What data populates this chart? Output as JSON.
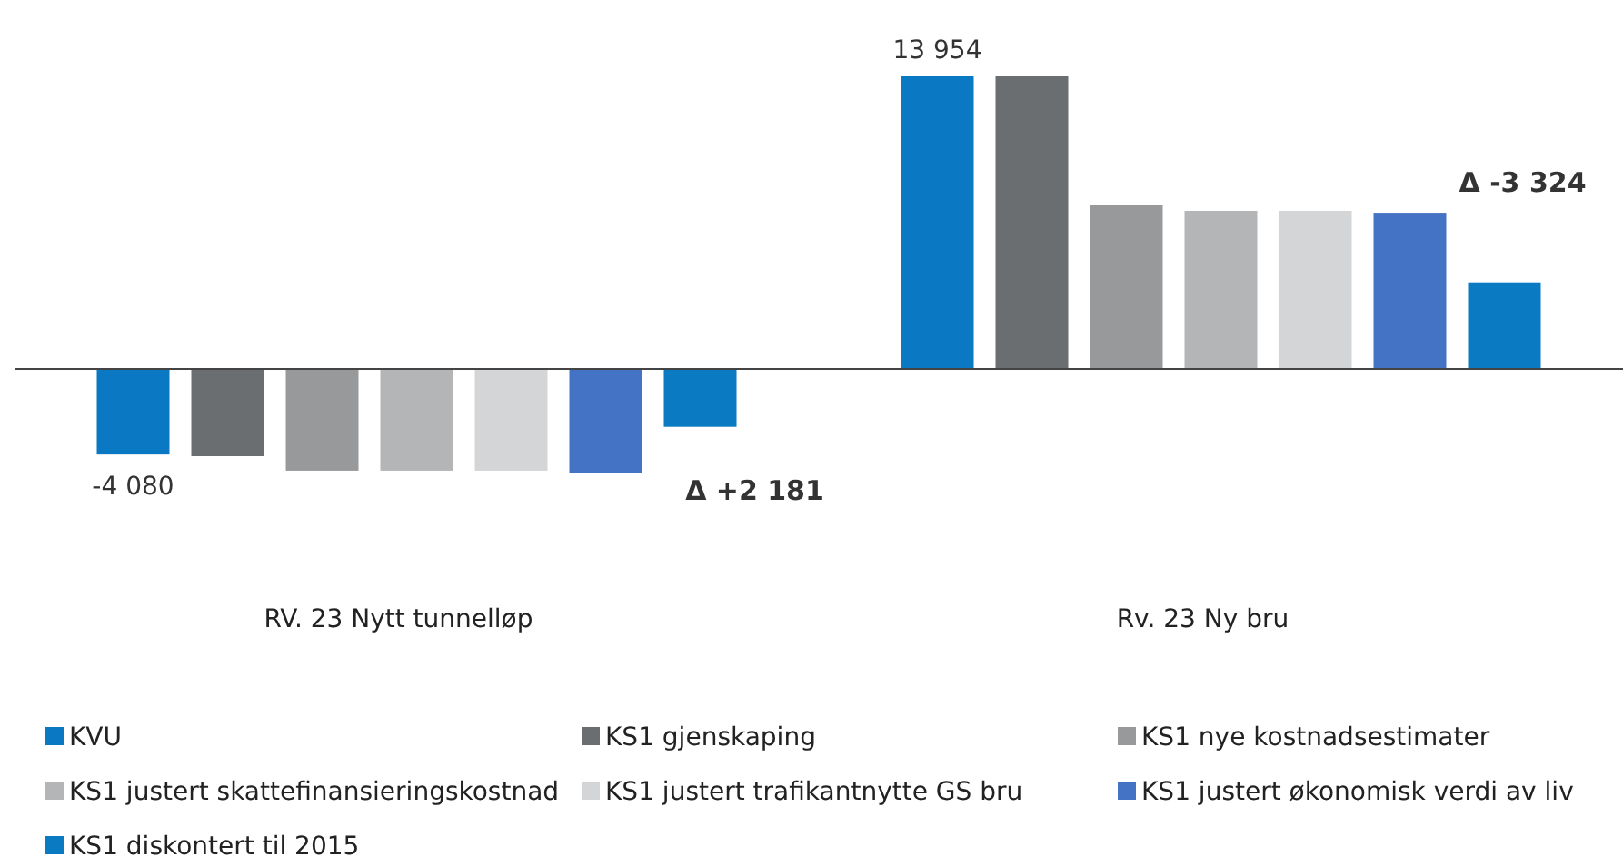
{
  "chart_data": {
    "type": "bar",
    "categories": [
      "RV. 23 Nytt tunnelløp",
      "Rv. 23 Ny bru"
    ],
    "series": [
      {
        "name": "KVU",
        "color": "#0a78c2",
        "values": [
          -4080,
          13954
        ],
        "value_labels": [
          "-4 080",
          "13 954"
        ]
      },
      {
        "name": "KS1 gjenskaping",
        "color": "#6b6e70",
        "values": [
          -4160,
          13954
        ]
      },
      {
        "name": "KS1 nye kostnadsestimater",
        "color": "#98999b",
        "values": [
          -4850,
          7800
        ]
      },
      {
        "name": "KS1 justert skattefinansieringskostnad",
        "color": "#b4b5b7",
        "values": [
          -4850,
          7540
        ]
      },
      {
        "name": "KS1 justert trafikantnytte GS bru",
        "color": "#d4d5d7",
        "values": [
          -4850,
          7540
        ]
      },
      {
        "name": "KS1 justert økonomisk verdi av liv",
        "color": "#4472c4",
        "values": [
          -4940,
          7450
        ]
      },
      {
        "name": "KS1 diskontert til 2015",
        "color": "#0a7ac2",
        "values": [
          -2760,
          4130
        ]
      }
    ],
    "annotations": [
      "Δ +2 181",
      "Δ -3 324"
    ],
    "legend": "bottom"
  }
}
